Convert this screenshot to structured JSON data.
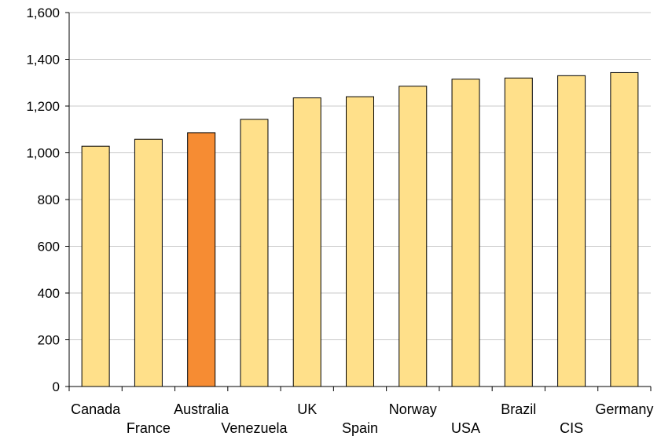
{
  "chart_data": {
    "type": "bar",
    "title": "",
    "xlabel": "",
    "ylabel": "",
    "categories": [
      "Canada",
      "France",
      "Australia",
      "Venezuela",
      "UK",
      "Spain",
      "Norway",
      "USA",
      "Brazil",
      "CIS",
      "Germany"
    ],
    "values": [
      1028,
      1058,
      1086,
      1143,
      1235,
      1240,
      1285,
      1315,
      1320,
      1330,
      1343
    ],
    "highlight_category": "Australia",
    "ylim": [
      0,
      1600
    ],
    "yticks": [
      0,
      200,
      400,
      600,
      800,
      1000,
      1200,
      1400,
      1600
    ],
    "ytick_labels": [
      "0",
      "200",
      "400",
      "600",
      "800",
      "1,000",
      "1,200",
      "1,400",
      "1,600"
    ],
    "grid": true,
    "legend": "none",
    "colors": {
      "bar": "#FFE08A",
      "highlight": "#F68C33",
      "bar_outline": "#000000",
      "grid": "#C8C8C8",
      "axis": "#000000"
    }
  }
}
